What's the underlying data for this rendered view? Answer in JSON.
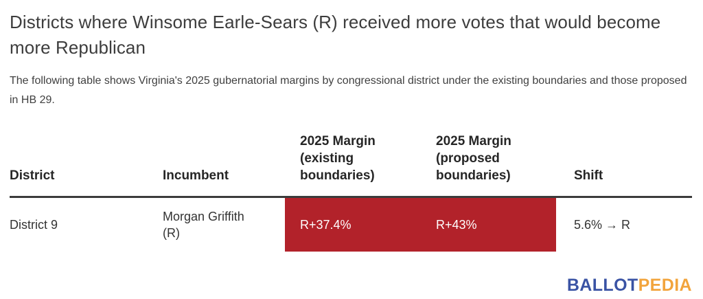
{
  "title": "Districts where Winsome Earle-Sears (R) received more votes that would become more Republican",
  "subtitle": "The following table shows Virginia's 2025 gubernatorial margins by congressional district under the existing boundaries and those proposed in HB 29.",
  "chart_data": {
    "type": "table",
    "title": "Districts where Winsome Earle-Sears (R) received more votes that would become more Republican",
    "subtitle": "The following table shows Virginia's 2025 gubernatorial margins by congressional district under the existing boundaries and those proposed in HB 29.",
    "columns": [
      "District",
      "Incumbent",
      "2025 Margin (existing boundaries)",
      "2025 Margin (proposed boundaries)",
      "Shift"
    ],
    "rows": [
      {
        "district": "District 9",
        "incumbent": "Morgan Griffith (R)",
        "margin_existing": "R+37.4%",
        "margin_proposed": "R+43%",
        "shift": "5.6% → R",
        "highlighted_columns": [
          "margin_existing",
          "margin_proposed"
        ]
      }
    ],
    "highlight_color": "#b2222a",
    "layout": {
      "header_divider_color": "#3b3b3b",
      "grid": "off",
      "legend": "none"
    }
  },
  "logo": {
    "text_primary": "BALLOT",
    "text_secondary": "PEDIA",
    "color_primary": "#3a53a4",
    "color_secondary": "#f2a43c"
  }
}
